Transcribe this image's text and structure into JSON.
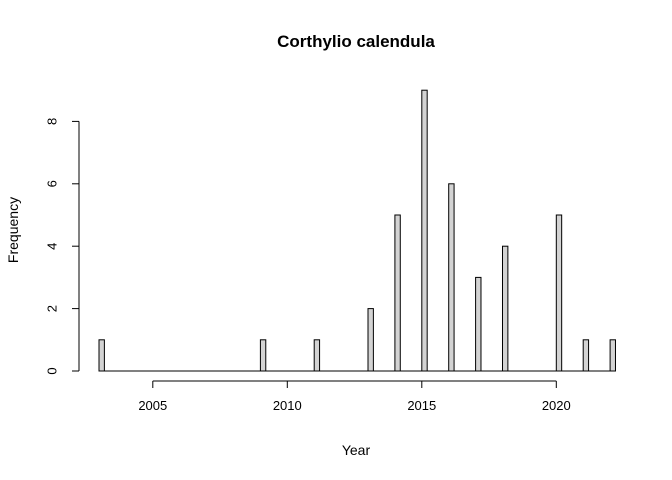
{
  "chart_data": {
    "type": "bar",
    "title": "Corthylio calendula",
    "xlabel": "Year",
    "ylabel": "Frequency",
    "x_ticks": [
      2005,
      2010,
      2015,
      2020
    ],
    "y_ticks": [
      0,
      2,
      4,
      6,
      8
    ],
    "xlim": [
      2003,
      2022
    ],
    "ylim": [
      0,
      9
    ],
    "bin_width": 0.2,
    "grid": false,
    "legend": "none",
    "bar_color": "#d3d3d3",
    "x": [
      2003,
      2004,
      2005,
      2006,
      2007,
      2008,
      2009,
      2010,
      2011,
      2012,
      2013,
      2014,
      2015,
      2016,
      2017,
      2018,
      2019,
      2020,
      2021,
      2022
    ],
    "values": [
      1,
      0,
      0,
      0,
      0,
      0,
      1,
      0,
      1,
      0,
      2,
      5,
      9,
      6,
      3,
      4,
      0,
      5,
      1,
      1
    ]
  }
}
